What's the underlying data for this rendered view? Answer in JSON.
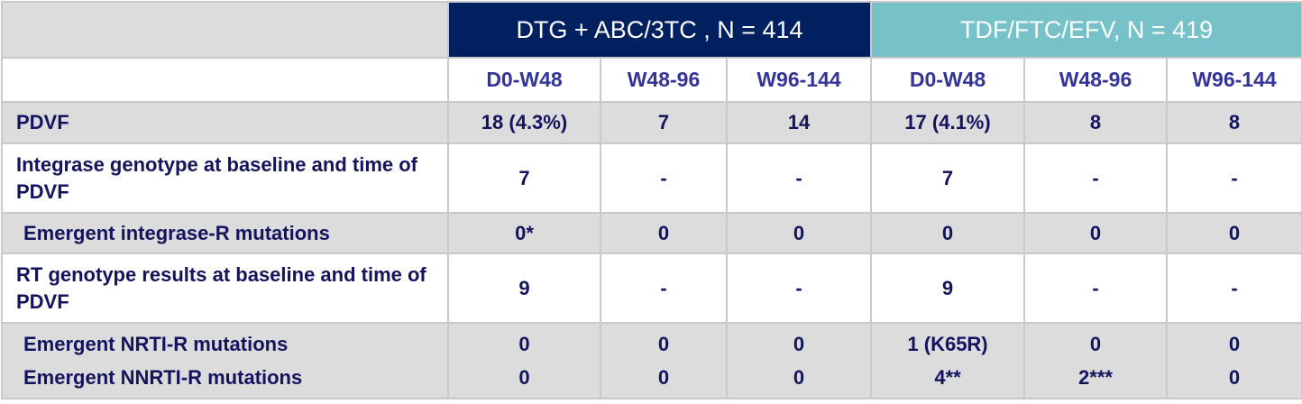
{
  "table": {
    "groups": [
      "DTG + ABC/3TC , N = 414",
      "TDF/FTC/EFV, N = 419"
    ],
    "periods": [
      "D0-W48",
      "W48-96",
      "W96-144",
      "D0-W48",
      "W48-96",
      "W96-144"
    ],
    "rows": [
      {
        "labels": [
          "PDVF"
        ],
        "cells": [
          [
            "18 (4.3%)"
          ],
          [
            "7"
          ],
          [
            "14"
          ],
          [
            "17 (4.1%)"
          ],
          [
            "8"
          ],
          [
            "8"
          ]
        ]
      },
      {
        "labels": [
          "Integrase genotype at baseline and time of PDVF"
        ],
        "cells": [
          [
            "7"
          ],
          [
            "-"
          ],
          [
            "-"
          ],
          [
            "7"
          ],
          [
            "-"
          ],
          [
            "-"
          ]
        ]
      },
      {
        "labels": [
          "Emergent integrase-R mutations"
        ],
        "cells": [
          [
            "0*"
          ],
          [
            "0"
          ],
          [
            "0"
          ],
          [
            "0"
          ],
          [
            "0"
          ],
          [
            "0"
          ]
        ]
      },
      {
        "labels": [
          "RT genotype results at baseline and time of PDVF"
        ],
        "cells": [
          [
            "9"
          ],
          [
            "-"
          ],
          [
            "-"
          ],
          [
            "9"
          ],
          [
            "-"
          ],
          [
            "-"
          ]
        ]
      },
      {
        "labels": [
          "Emergent NRTI-R mutations",
          "Emergent NNRTI-R mutations"
        ],
        "cells": [
          [
            "0",
            "0"
          ],
          [
            "0",
            "0"
          ],
          [
            "0",
            "0"
          ],
          [
            "1 (K65R)",
            "4**"
          ],
          [
            "0",
            "2***"
          ],
          [
            "0",
            "0"
          ]
        ]
      }
    ]
  }
}
